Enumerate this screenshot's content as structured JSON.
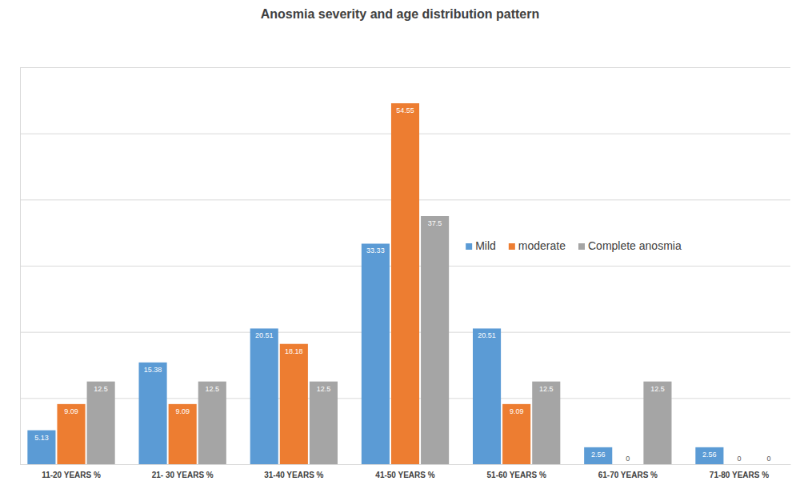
{
  "chart_data": {
    "type": "bar",
    "title": "Anosmia severity and age distribution pattern",
    "categories": [
      "11-20 YEARS %",
      "21- 30 YEARS %",
      "31-40 YEARS %",
      "41-50 YEARS %",
      "51-60 YEARS %",
      "61-70 YEARS %",
      "71-80 YEARS %"
    ],
    "series": [
      {
        "name": "Mild",
        "color": "#5b9bd5",
        "values": [
          5.13,
          15.38,
          20.51,
          33.33,
          20.51,
          2.56,
          2.56
        ]
      },
      {
        "name": "moderate",
        "color": "#ed7d31",
        "values": [
          9.09,
          9.09,
          18.18,
          54.55,
          9.09,
          0,
          0
        ]
      },
      {
        "name": "Complete anosmia",
        "color": "#a5a5a5",
        "values": [
          12.5,
          12.5,
          12.5,
          37.5,
          12.5,
          12.5,
          0
        ]
      }
    ],
    "ylim": [
      0,
      60
    ],
    "yticks": [
      0,
      10,
      20,
      30,
      40,
      50,
      60
    ],
    "grid": true,
    "legend": "right",
    "data_labels": true,
    "tick_labels": "x"
  }
}
